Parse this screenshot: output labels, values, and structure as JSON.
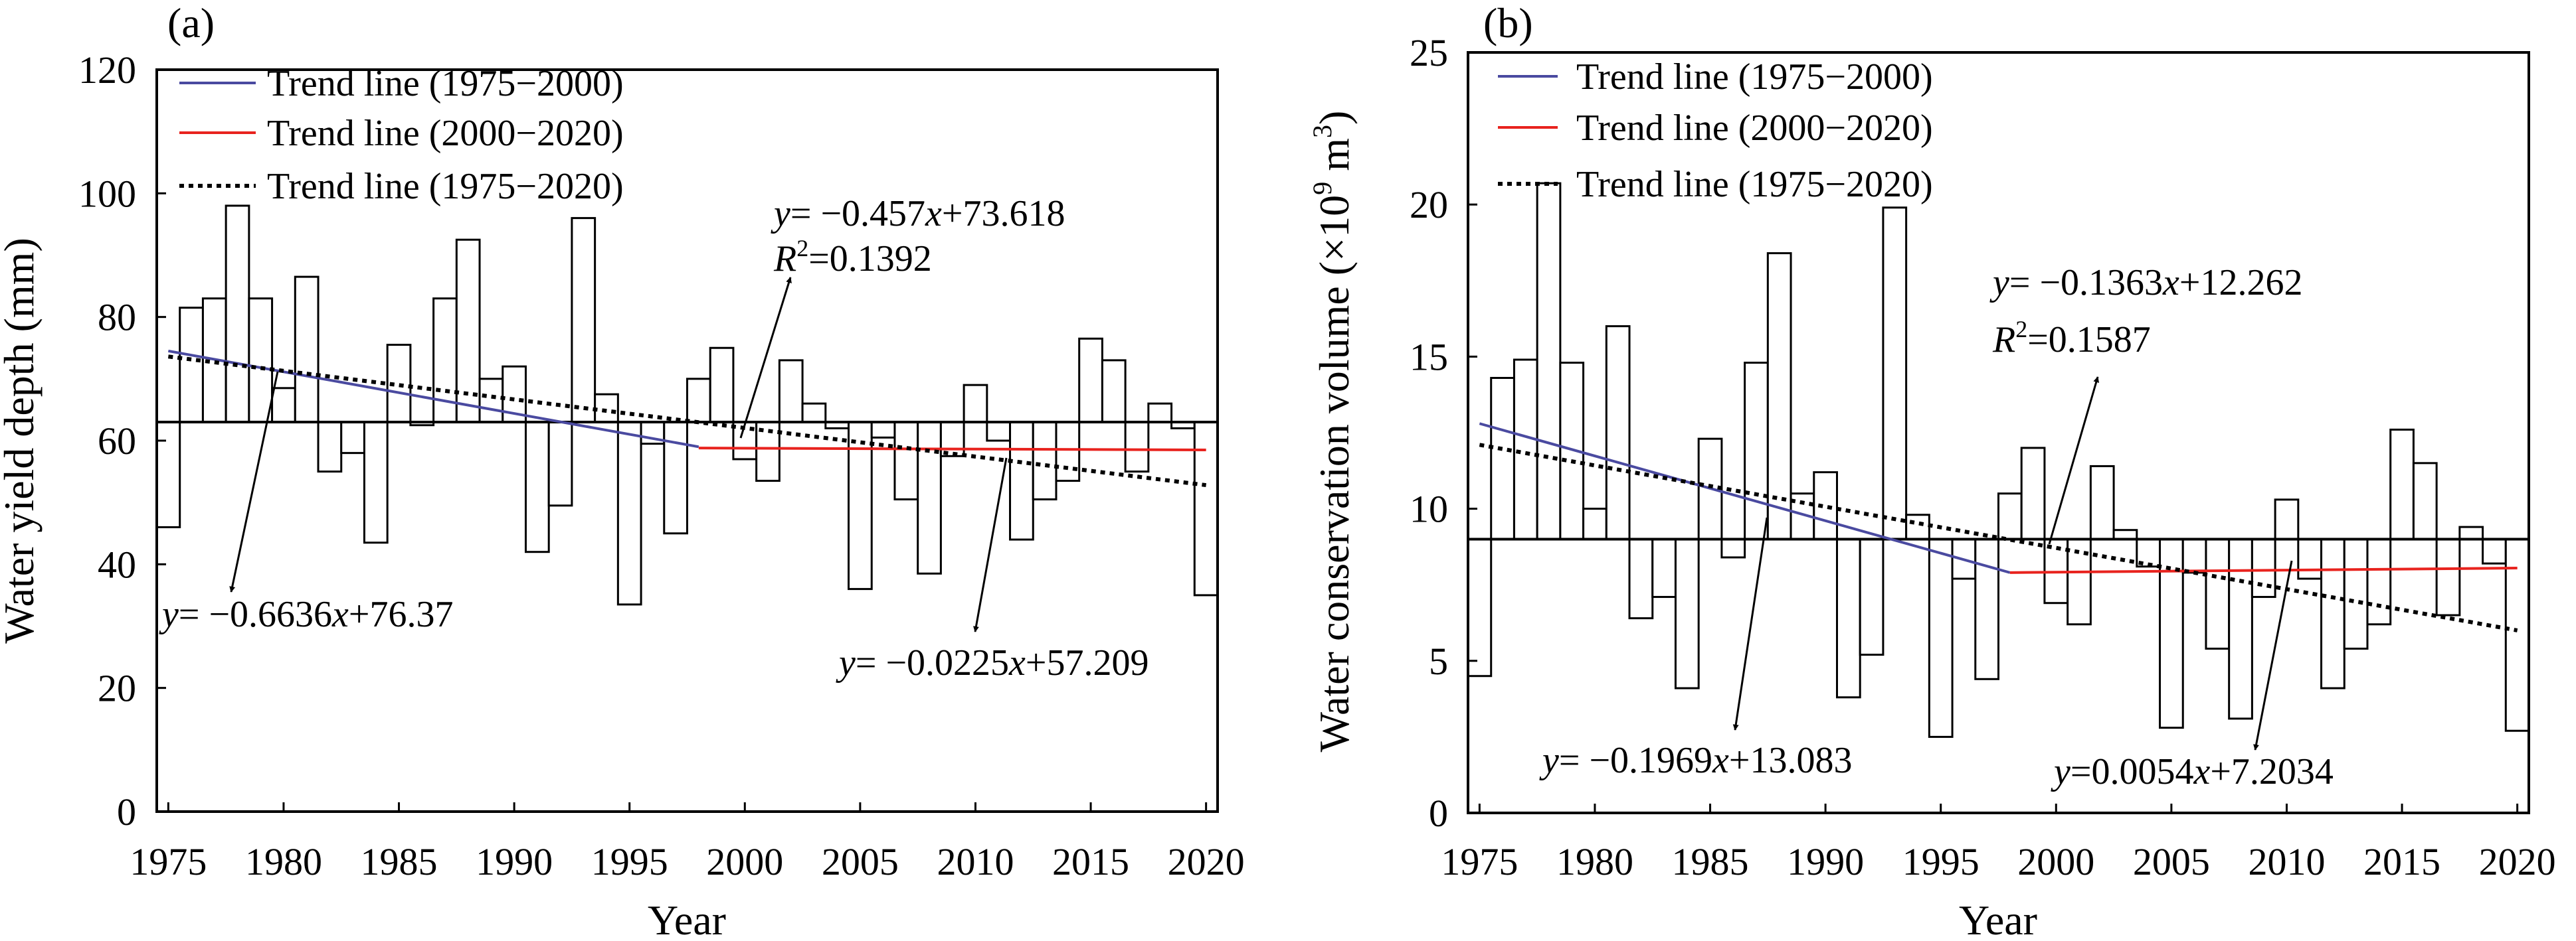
{
  "chart_data": [
    {
      "type": "bar",
      "panel_label": "(a)",
      "xlabel": "Year",
      "ylabel": "Water yield depth (mm)",
      "ylim": [
        0,
        120
      ],
      "yticks": [
        0,
        20,
        40,
        60,
        80,
        100,
        120
      ],
      "xlim": [
        1974.5,
        2020.5
      ],
      "xticks": [
        1975,
        1980,
        1985,
        1990,
        1995,
        2000,
        2005,
        2010,
        2015,
        2020
      ],
      "bar_baseline": 63,
      "years": [
        1975,
        1976,
        1977,
        1978,
        1979,
        1980,
        1981,
        1982,
        1983,
        1984,
        1985,
        1986,
        1987,
        1988,
        1989,
        1990,
        1991,
        1992,
        1993,
        1994,
        1995,
        1996,
        1997,
        1998,
        1999,
        2000,
        2001,
        2002,
        2003,
        2004,
        2005,
        2006,
        2007,
        2008,
        2009,
        2010,
        2011,
        2012,
        2013,
        2014,
        2015,
        2016,
        2017,
        2018,
        2019,
        2020
      ],
      "values": [
        46,
        81.5,
        83,
        98,
        83,
        68.5,
        86.5,
        55,
        58,
        43.5,
        75.5,
        62.5,
        83,
        92.5,
        70,
        72,
        42,
        49.5,
        96,
        67.5,
        33.5,
        59.5,
        45,
        70,
        75,
        57,
        53.5,
        73,
        66,
        62,
        36,
        60.5,
        50.5,
        38.5,
        57.5,
        69,
        60,
        44,
        50.5,
        53.5,
        76.5,
        73,
        55,
        66,
        62,
        35
      ],
      "trend_lines": [
        {
          "name": "Trend line (1975−2000)",
          "style": "solid",
          "color": "#4a4aa0",
          "x": [
            1975,
            1998
          ],
          "y": [
            74.5,
            59
          ]
        },
        {
          "name": "Trend line (2000−2020)",
          "style": "solid",
          "color": "#e8231e",
          "x": [
            1998,
            2020
          ],
          "y": [
            58.8,
            58.5
          ]
        },
        {
          "name": "Trend line (1975−2020)",
          "style": "dotted",
          "color": "#000000",
          "x": [
            1975,
            2020
          ],
          "y": [
            73.6,
            52.8
          ]
        }
      ],
      "legend": [
        "Trend line (1975−2000)",
        "Trend line (2000−2020)",
        "Trend line (1975−2020)"
      ],
      "legend_position": "top-left",
      "annotations": [
        {
          "eq_y": "y",
          "eq_rest": "= −0.457",
          "eq_x": "x",
          "eq_const": "+73.618",
          "r2_r": "R",
          "r2_sup": "2",
          "r2_val": "=0.1392"
        },
        {
          "eq_y": "y",
          "eq_rest": "= −0.6636",
          "eq_x": "x",
          "eq_const": "+76.37"
        },
        {
          "eq_y": "y",
          "eq_rest": "= −0.0225",
          "eq_x": "x",
          "eq_const": "+57.209"
        }
      ]
    },
    {
      "type": "bar",
      "panel_label": "(b)",
      "xlabel": "Year",
      "ylabel_main": "Water conservation volume (×10",
      "ylabel_sup1": "9",
      "ylabel_mid": " m",
      "ylabel_sup2": "3",
      "ylabel_end": ")",
      "ylim": [
        0,
        25
      ],
      "yticks": [
        0,
        5,
        10,
        15,
        20,
        25
      ],
      "xlim": [
        1974.5,
        2020.5
      ],
      "xticks": [
        1975,
        1980,
        1985,
        1990,
        1995,
        2000,
        2005,
        2010,
        2015,
        2020
      ],
      "bar_baseline": 9,
      "years": [
        1975,
        1976,
        1977,
        1978,
        1979,
        1980,
        1981,
        1982,
        1983,
        1984,
        1985,
        1986,
        1987,
        1988,
        1989,
        1990,
        1991,
        1992,
        1993,
        1994,
        1995,
        1996,
        1997,
        1998,
        1999,
        2000,
        2001,
        2002,
        2003,
        2004,
        2005,
        2006,
        2007,
        2008,
        2009,
        2010,
        2011,
        2012,
        2013,
        2014,
        2015,
        2016,
        2017,
        2018,
        2019,
        2020
      ],
      "values": [
        4.5,
        14.3,
        14.9,
        20.7,
        14.8,
        10,
        16,
        6.4,
        7.1,
        4.1,
        12.3,
        8.4,
        14.8,
        18.4,
        10.5,
        11.2,
        3.8,
        5.2,
        19.9,
        9.8,
        2.5,
        7.7,
        4.4,
        10.5,
        12,
        6.9,
        6.2,
        11.4,
        9.3,
        8.1,
        2.8,
        7.9,
        5.4,
        3.1,
        7.1,
        10.3,
        7.7,
        4.1,
        5.4,
        6.2,
        12.6,
        11.5,
        6.5,
        9.4,
        8.2,
        2.7
      ],
      "trend_lines": [
        {
          "name": "Trend line (1975−2000)",
          "style": "solid",
          "color": "#4a4aa0",
          "x": [
            1975,
            1998
          ],
          "y": [
            12.8,
            7.9
          ]
        },
        {
          "name": "Trend line (2000−2020)",
          "style": "solid",
          "color": "#e8231e",
          "x": [
            1998,
            2020
          ],
          "y": [
            7.9,
            8.05
          ]
        },
        {
          "name": "Trend line (1975−2020)",
          "style": "dotted",
          "color": "#000000",
          "x": [
            1975,
            2020
          ],
          "y": [
            12.1,
            6
          ]
        }
      ],
      "legend": [
        "Trend line (1975−2000)",
        "Trend line (2000−2020)",
        "Trend line (1975−2020)"
      ],
      "legend_position": "top-left",
      "annotations": [
        {
          "eq_y": "y",
          "eq_rest": "= −0.1363",
          "eq_x": "x",
          "eq_const": "+12.262",
          "r2_r": "R",
          "r2_sup": "2",
          "r2_val": "=0.1587"
        },
        {
          "eq_y": "y",
          "eq_rest": "= −0.1969",
          "eq_x": "x",
          "eq_const": "+13.083"
        },
        {
          "eq_y": "y",
          "eq_rest": "=0.0054",
          "eq_x": "x",
          "eq_const": "+7.2034"
        }
      ]
    }
  ]
}
